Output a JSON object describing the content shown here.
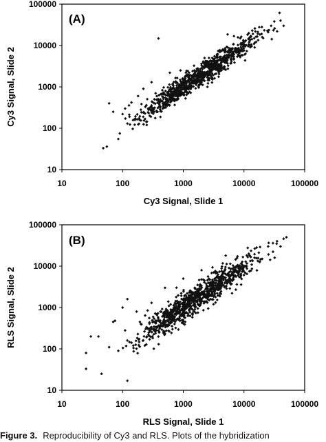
{
  "caption": {
    "figure_label": "Figure 3.",
    "text": "Reproducibility of Cy3 and RLS. Plots of the hybridization"
  },
  "chart_data": [
    {
      "type": "scatter",
      "panel_label": "(A)",
      "title": "",
      "xlabel": "Cy3 Signal, Slide 1",
      "ylabel": "Cy3 Signal, Slide 2",
      "xscale": "log",
      "yscale": "log",
      "xlim": [
        10,
        100000
      ],
      "ylim": [
        10,
        100000
      ],
      "x_ticks": [
        "10",
        "100",
        "1000",
        "10000",
        "100000"
      ],
      "y_ticks": [
        "10",
        "100",
        "1000",
        "10000",
        "100000"
      ],
      "grid": false,
      "legend": "none",
      "marker_color": "#111111",
      "points": [
        [
          48,
          33
        ],
        [
          55,
          36
        ],
        [
          60,
          400
        ],
        [
          70,
          250
        ],
        [
          85,
          55
        ],
        [
          90,
          75
        ],
        [
          100,
          220
        ],
        [
          110,
          300
        ],
        [
          120,
          130
        ],
        [
          130,
          190
        ],
        [
          140,
          420
        ],
        [
          160,
          160
        ],
        [
          180,
          600
        ],
        [
          200,
          280
        ],
        [
          220,
          900
        ],
        [
          250,
          120
        ],
        [
          280,
          200
        ],
        [
          300,
          1300
        ],
        [
          350,
          700
        ],
        [
          390,
          14800
        ],
        [
          420,
          500
        ],
        [
          460,
          300
        ],
        [
          500,
          420
        ],
        [
          600,
          2200
        ],
        [
          800,
          500
        ],
        [
          900,
          2500
        ],
        [
          1200,
          700
        ],
        [
          1500,
          2000
        ],
        [
          2000,
          1300
        ],
        [
          2500,
          1000
        ],
        [
          3000,
          5000
        ],
        [
          5000,
          2600
        ],
        [
          6000,
          3700
        ],
        [
          8000,
          6000
        ],
        [
          10000,
          12000
        ],
        [
          15000,
          9000
        ],
        [
          20000,
          16000
        ],
        [
          25000,
          21000
        ],
        [
          28000,
          30000
        ],
        [
          32000,
          26000
        ],
        [
          40000,
          40000
        ],
        [
          45000,
          30000
        ]
      ],
      "cloud": {
        "description_points": "dense diagonal cluster",
        "count": 900,
        "log_x_range": [
          2.0,
          4.7
        ],
        "spread_log": 0.13,
        "seed": 7
      }
    },
    {
      "type": "scatter",
      "panel_label": "(B)",
      "title": "",
      "xlabel": "RLS Signal, Slide 1",
      "ylabel": "RLS Signal, Slide 2",
      "xscale": "log",
      "yscale": "log",
      "xlim": [
        10,
        100000
      ],
      "ylim": [
        10,
        100000
      ],
      "x_ticks": [
        "10",
        "100",
        "1000",
        "10000",
        "100000"
      ],
      "y_ticks": [
        "10",
        "100",
        "1000",
        "10000",
        "100000"
      ],
      "grid": false,
      "legend": "none",
      "marker_color": "#111111",
      "points": [
        [
          25,
          80
        ],
        [
          25,
          33
        ],
        [
          30,
          200
        ],
        [
          40,
          200
        ],
        [
          45,
          25
        ],
        [
          60,
          110
        ],
        [
          70,
          450
        ],
        [
          75,
          480
        ],
        [
          85,
          90
        ],
        [
          100,
          1000
        ],
        [
          110,
          280
        ],
        [
          120,
          1600
        ],
        [
          120,
          17
        ],
        [
          150,
          120
        ],
        [
          170,
          800
        ],
        [
          200,
          400
        ],
        [
          300,
          1300
        ],
        [
          400,
          250
        ],
        [
          500,
          3000
        ],
        [
          700,
          600
        ],
        [
          1000,
          5000
        ],
        [
          1500,
          1200
        ],
        [
          2000,
          8000
        ],
        [
          3000,
          2000
        ],
        [
          5000,
          18000
        ],
        [
          8000,
          6000
        ],
        [
          12000,
          20000
        ],
        [
          20000,
          15000
        ],
        [
          25000,
          30000
        ],
        [
          35000,
          40000
        ],
        [
          40000,
          30000
        ],
        [
          50000,
          50000
        ],
        [
          45000,
          46000
        ],
        [
          30000,
          36000
        ]
      ],
      "cloud": {
        "description_points": "dense diagonal cluster",
        "count": 950,
        "log_x_range": [
          2.0,
          4.7
        ],
        "spread_log": 0.17,
        "seed": 13
      }
    }
  ]
}
